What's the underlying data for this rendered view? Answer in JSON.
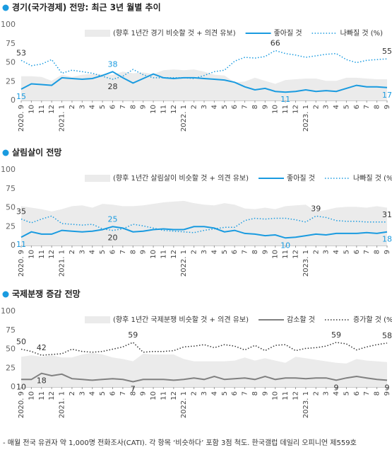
{
  "chart_data": [
    {
      "type": "line",
      "title": "경기(국가경제) 전망:  최근 3년 월별 추이",
      "categories": [
        "2020. 9",
        "10",
        "11",
        "12",
        "2021. 1",
        "2",
        "3",
        "4",
        "5",
        "6",
        "7",
        "8",
        "9",
        "10",
        "11",
        "12",
        "2022. 1",
        "2",
        "3",
        "4",
        "5",
        "6",
        "7",
        "8",
        "9",
        "10",
        "11",
        "12",
        "2023. 1",
        "2",
        "3",
        "4",
        "5",
        "6",
        "7",
        "8",
        "9"
      ],
      "series": [
        {
          "name": "(향후 1년간 경기 비슷할 것 + 의견 유보)",
          "color": "#ebebeb",
          "style": "area",
          "values": [
            32,
            32,
            31,
            26,
            34,
            31,
            34,
            35,
            35,
            34,
            38,
            36,
            37,
            35,
            40,
            41,
            40,
            41,
            38,
            34,
            33,
            24,
            25,
            30,
            26,
            22,
            27,
            28,
            29,
            29,
            26,
            26,
            30,
            30,
            29,
            28,
            28
          ]
        },
        {
          "name": "좋아질 것",
          "color": "#1a9be0",
          "style": "solid",
          "values": [
            15,
            22,
            21,
            20,
            30,
            29,
            28,
            29,
            33,
            38,
            30,
            23,
            29,
            35,
            30,
            29,
            30,
            30,
            29,
            28,
            27,
            24,
            18,
            14,
            16,
            12,
            11,
            12,
            14,
            12,
            13,
            12,
            16,
            20,
            18,
            18,
            17
          ],
          "value_labels": [
            "15",
            null,
            null,
            null,
            null,
            null,
            null,
            null,
            null,
            "38",
            null,
            null,
            null,
            null,
            null,
            null,
            null,
            null,
            null,
            null,
            null,
            null,
            null,
            null,
            null,
            null,
            "11",
            null,
            null,
            null,
            null,
            null,
            null,
            null,
            null,
            null,
            "17"
          ]
        },
        {
          "name": "나빠질 것 (%)",
          "color": "#1a9be0",
          "style": "dotted",
          "values": [
            53,
            46,
            48,
            54,
            36,
            40,
            38,
            36,
            32,
            28,
            32,
            41,
            34,
            30,
            30,
            30,
            30,
            29,
            33,
            38,
            40,
            52,
            57,
            56,
            58,
            66,
            62,
            60,
            57,
            59,
            61,
            62,
            54,
            50,
            53,
            54,
            55
          ],
          "value_labels": [
            "53",
            null,
            null,
            null,
            null,
            null,
            null,
            null,
            null,
            "28",
            null,
            null,
            null,
            null,
            null,
            null,
            null,
            null,
            null,
            null,
            null,
            null,
            null,
            null,
            null,
            "66",
            null,
            null,
            null,
            null,
            null,
            null,
            null,
            null,
            null,
            null,
            "55"
          ]
        }
      ],
      "ylim": [
        0,
        100
      ],
      "yticks": [
        0,
        25,
        50,
        75,
        100
      ],
      "grid": false
    },
    {
      "type": "line",
      "title": "살림살이 전망",
      "categories": [
        "2020. 9",
        "10",
        "11",
        "12",
        "2021. 1",
        "2",
        "3",
        "4",
        "5",
        "6",
        "7",
        "8",
        "9",
        "10",
        "11",
        "12",
        "2022. 1",
        "2",
        "3",
        "4",
        "5",
        "6",
        "7",
        "8",
        "9",
        "10",
        "11",
        "12",
        "2023. 1",
        "2",
        "3",
        "4",
        "5",
        "6",
        "7",
        "8",
        "9"
      ],
      "series": [
        {
          "name": "(향후 1년간 살림살이 비슷할 것 + 의견 유보)",
          "color": "#ebebeb",
          "style": "area",
          "values": [
            52,
            50,
            48,
            45,
            48,
            52,
            53,
            50,
            55,
            54,
            52,
            52,
            53,
            55,
            57,
            58,
            59,
            56,
            54,
            53,
            56,
            54,
            49,
            48,
            50,
            48,
            52,
            53,
            54,
            45,
            47,
            50,
            51,
            51,
            50,
            52,
            50
          ]
        },
        {
          "name": "좋아질 것",
          "color": "#1a9be0",
          "style": "solid",
          "values": [
            11,
            18,
            15,
            15,
            20,
            19,
            18,
            19,
            21,
            25,
            23,
            18,
            19,
            21,
            22,
            21,
            21,
            25,
            25,
            23,
            18,
            20,
            16,
            15,
            13,
            14,
            10,
            11,
            13,
            15,
            14,
            16,
            16,
            16,
            17,
            16,
            18
          ],
          "value_labels": [
            "11",
            null,
            null,
            null,
            null,
            null,
            null,
            null,
            null,
            "25",
            null,
            null,
            null,
            null,
            null,
            null,
            null,
            null,
            null,
            null,
            null,
            null,
            null,
            null,
            null,
            null,
            "10",
            null,
            null,
            null,
            null,
            null,
            null,
            null,
            null,
            null,
            "18"
          ]
        },
        {
          "name": "나빠질 것 (%)",
          "color": "#1a9be0",
          "style": "dotted",
          "values": [
            35,
            30,
            35,
            39,
            29,
            28,
            27,
            28,
            22,
            20,
            22,
            28,
            26,
            23,
            20,
            19,
            18,
            17,
            20,
            22,
            24,
            24,
            33,
            36,
            35,
            36,
            36,
            34,
            31,
            39,
            37,
            33,
            32,
            32,
            31,
            31,
            31
          ],
          "value_labels": [
            "35",
            null,
            null,
            null,
            null,
            null,
            null,
            null,
            null,
            "20",
            null,
            null,
            null,
            null,
            null,
            null,
            null,
            null,
            null,
            null,
            null,
            null,
            null,
            null,
            null,
            null,
            null,
            null,
            null,
            "39",
            null,
            null,
            null,
            null,
            null,
            null,
            "31"
          ]
        }
      ],
      "ylim": [
        0,
        100
      ],
      "yticks": [
        0,
        25,
        50,
        75,
        100
      ],
      "grid": false
    },
    {
      "type": "line",
      "title": "국제분쟁 증감 전망",
      "categories": [
        "2020. 9",
        "10",
        "11",
        "12",
        "2021. 1",
        "2",
        "3",
        "4",
        "5",
        "6",
        "7",
        "8",
        "9",
        "10",
        "11",
        "12",
        "2022. 1",
        "2",
        "3",
        "4",
        "5",
        "6",
        "7",
        "8",
        "9",
        "10",
        "11",
        "12",
        "2023. 1",
        "2",
        "3",
        "4",
        "5",
        "6",
        "7",
        "8",
        "9"
      ],
      "series": [
        {
          "name": "(향후 1년간 국제분쟁 비슷할 것 + 의견 유보)",
          "color": "#ebebeb",
          "style": "area",
          "values": [
            40,
            42,
            40,
            42,
            39,
            39,
            43,
            45,
            43,
            39,
            37,
            34,
            44,
            43,
            43,
            43,
            37,
            34,
            34,
            34,
            34,
            35,
            39,
            35,
            38,
            35,
            32,
            40,
            38,
            36,
            34,
            32,
            31,
            37,
            35,
            34,
            33
          ]
        },
        {
          "name": "감소할 것",
          "color": "#808080",
          "style": "solid",
          "values": [
            10,
            10,
            18,
            15,
            17,
            11,
            10,
            9,
            10,
            11,
            10,
            7,
            10,
            10,
            10,
            9,
            10,
            12,
            10,
            14,
            10,
            11,
            12,
            10,
            14,
            10,
            12,
            12,
            11,
            12,
            12,
            9,
            12,
            14,
            12,
            10,
            9
          ],
          "value_labels": [
            "10",
            null,
            "18",
            null,
            null,
            null,
            null,
            null,
            null,
            null,
            null,
            "7",
            null,
            null,
            null,
            null,
            null,
            null,
            null,
            null,
            null,
            null,
            null,
            null,
            null,
            null,
            null,
            null,
            null,
            null,
            null,
            "9",
            null,
            null,
            null,
            null,
            "9"
          ]
        },
        {
          "name": "증가할 것 (%)",
          "color": "#333333",
          "style": "dotted",
          "values": [
            50,
            47,
            42,
            43,
            44,
            50,
            47,
            46,
            47,
            50,
            53,
            59,
            46,
            47,
            47,
            48,
            53,
            54,
            56,
            52,
            56,
            54,
            49,
            55,
            48,
            55,
            56,
            48,
            51,
            52,
            54,
            59,
            57,
            49,
            53,
            56,
            58
          ],
          "value_labels": [
            "50",
            null,
            "42",
            null,
            null,
            null,
            null,
            null,
            null,
            null,
            null,
            "59",
            null,
            null,
            null,
            null,
            null,
            null,
            null,
            null,
            null,
            null,
            null,
            null,
            null,
            null,
            null,
            null,
            null,
            null,
            null,
            "59",
            null,
            null,
            null,
            null,
            "58"
          ]
        }
      ],
      "ylim": [
        0,
        100
      ],
      "yticks": [
        0,
        25,
        50,
        75,
        100
      ],
      "grid": false
    }
  ],
  "footnote": "- 매월 전국 유권자 약 1,000명 전화조사(CATI). 각 항목 ‘비슷하다’ 포함 3점 척도. 한국갤럽 데일리 오피니언 제559호"
}
